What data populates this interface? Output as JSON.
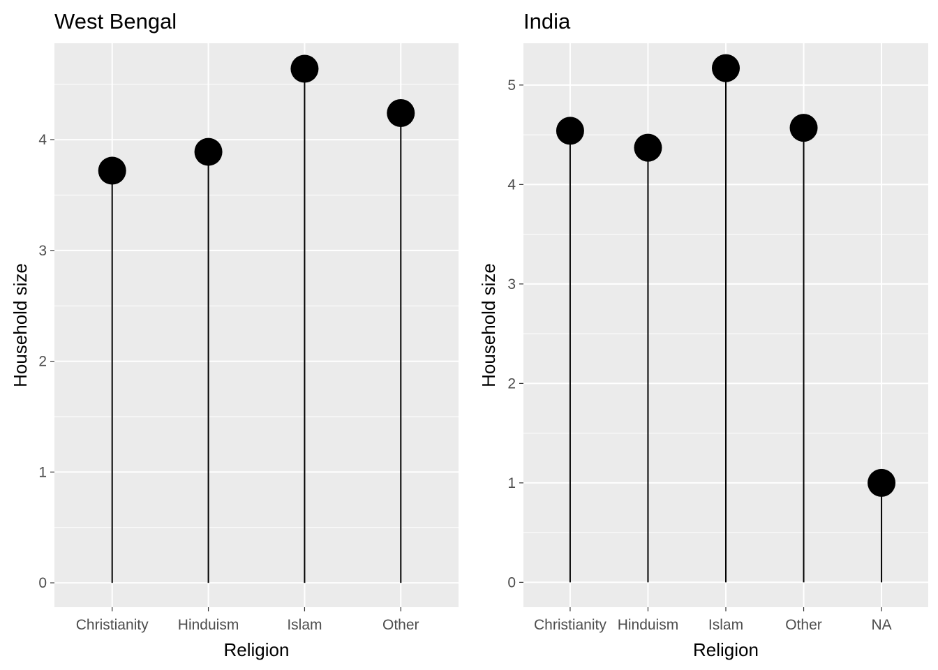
{
  "chart_data": [
    {
      "type": "lollipop",
      "title": "West Bengal",
      "xlabel": "Religion",
      "ylabel": "Household size",
      "categories": [
        "Christianity",
        "Hinduism",
        "Islam",
        "Other"
      ],
      "values": [
        3.72,
        3.89,
        4.64,
        4.24
      ],
      "ylim": [
        -0.22,
        4.87
      ],
      "yticks": [
        "0",
        "1",
        "2",
        "3",
        "4"
      ],
      "grid": true
    },
    {
      "type": "lollipop",
      "title": "India",
      "xlabel": "Religion",
      "ylabel": "Household size",
      "categories": [
        "Christianity",
        "Hinduism",
        "Islam",
        "Other",
        "NA"
      ],
      "values": [
        4.54,
        4.37,
        5.17,
        4.57,
        1.0
      ],
      "ylim": [
        -0.25,
        5.42
      ],
      "yticks": [
        "0",
        "1",
        "2",
        "3",
        "4",
        "5"
      ],
      "grid": true
    }
  ]
}
